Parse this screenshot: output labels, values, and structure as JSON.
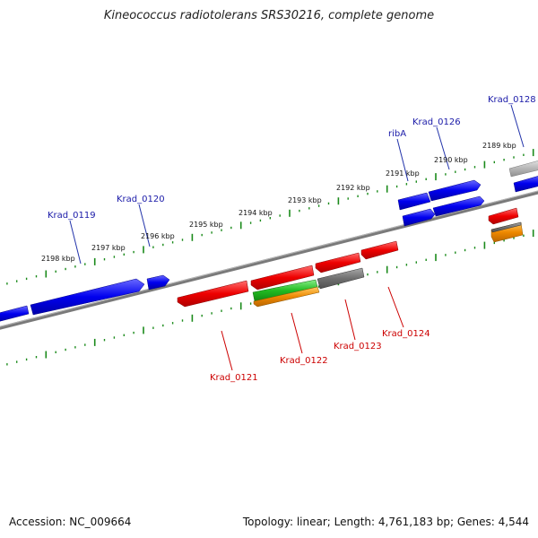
{
  "title": "Kineococcus radiotolerans SRS30216, complete genome",
  "footer": {
    "accession": "Accession: NC_009664",
    "summary": "Topology: linear; Length: 4,761,183 bp; Genes: 4,544"
  },
  "colors": {
    "blue": "#0000ee",
    "red": "#ee0000",
    "green": "#22bb22",
    "orange": "#ee8800",
    "gray": "#707070",
    "lightgray": "#b0b0b0",
    "tick_green": "#1a8a1a",
    "backbone": "#7a7a7a",
    "label_blue": "#1a1aa8",
    "label_red": "#cc0000"
  },
  "kbp_labels": [
    "2198 kbp",
    "2197 kbp",
    "2196 kbp",
    "2195 kbp",
    "2194 kbp",
    "2193 kbp",
    "2192 kbp",
    "2191 kbp",
    "2190 kbp",
    "2189 kbp"
  ],
  "gene_labels": {
    "top": [
      "Krad_0119",
      "Krad_0120",
      "ribA",
      "Krad_0126",
      "Krad_0128"
    ],
    "bottom": [
      "Krad_0121",
      "Krad_0122",
      "Krad_0123",
      "Krad_0124"
    ]
  }
}
